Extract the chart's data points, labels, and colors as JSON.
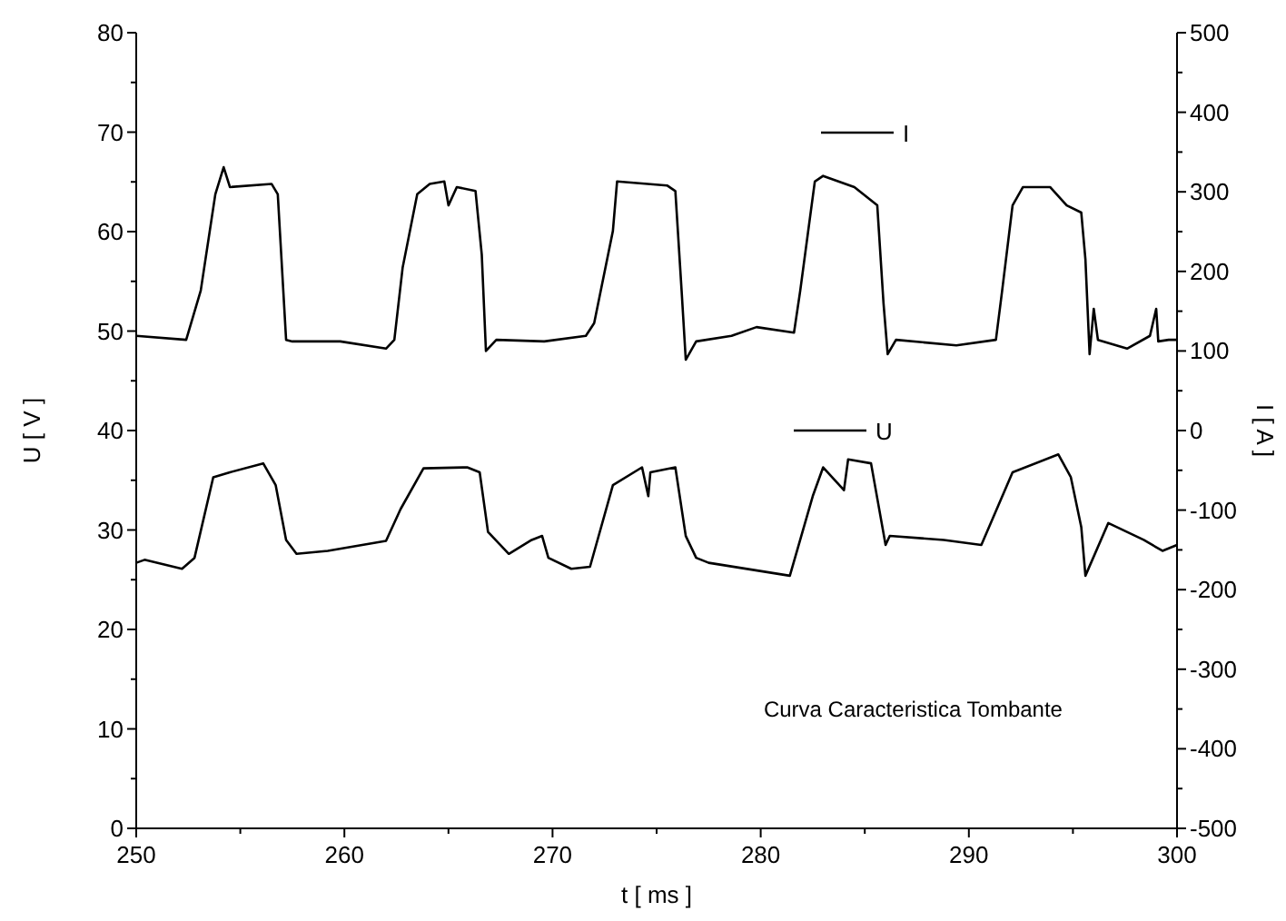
{
  "chart_data": {
    "type": "line",
    "xlabel": "t [ ms ]",
    "ylabel": "U [ V ]",
    "y2label": "I [ A ]",
    "xlim": [
      250,
      300
    ],
    "xticks": [
      250,
      {
        "value": 255,
        "label": null
      },
      260,
      {
        "value": 265,
        "label": null
      },
      270,
      {
        "value": 275,
        "label": null
      },
      280,
      {
        "value": 285,
        "label": null
      },
      290,
      {
        "value": 295,
        "label": null
      },
      300
    ],
    "ylim": [
      0,
      80
    ],
    "yticks": [
      0,
      {
        "value": 5,
        "label": null
      },
      10,
      {
        "value": 15,
        "label": null
      },
      20,
      {
        "value": 25,
        "label": null
      },
      30,
      {
        "value": 35,
        "label": null
      },
      40,
      {
        "value": 45,
        "label": null
      },
      50,
      {
        "value": 55,
        "label": null
      },
      60,
      {
        "value": 65,
        "label": null
      },
      70,
      {
        "value": 75,
        "label": null
      },
      80
    ],
    "y2lim": [
      -500,
      500
    ],
    "y2ticks": [
      -500,
      {
        "value": -450,
        "label": null
      },
      -400,
      {
        "value": -350,
        "label": null
      },
      -300,
      {
        "value": -250,
        "label": null
      },
      -200,
      {
        "value": -150,
        "label": null
      },
      -100,
      {
        "value": -50,
        "label": null
      },
      0,
      {
        "value": 50,
        "label": null
      },
      100,
      {
        "value": 150,
        "label": null
      },
      200,
      {
        "value": 250,
        "label": null
      },
      300,
      {
        "value": 350,
        "label": null
      },
      400,
      {
        "value": 450,
        "label": null
      },
      500
    ],
    "legend": "right",
    "grid": false,
    "marker": "none",
    "line_style": "solid",
    "annotations": [
      "Curva Caracteristica Tombante"
    ],
    "series": [
      {
        "name": "I",
        "color": "#000000",
        "axis": "y2",
        "x": [
          250,
          252.4,
          253.1,
          253.8,
          254.2,
          254.5,
          256.5,
          256.8,
          257.2,
          257.5,
          259.8,
          262,
          262.4,
          262.8,
          263.5,
          264.1,
          264.8,
          265,
          265.4,
          266.3,
          266.6,
          266.8,
          267.3,
          269.6,
          271.6,
          272,
          272.9,
          273.1,
          275.5,
          275.9,
          276.2,
          276.4,
          276.9,
          278.6,
          279.8,
          281.6,
          281.9,
          282.6,
          283,
          284.5,
          285.6,
          285.9,
          286.1,
          286.5,
          289.4,
          291.3,
          291.6,
          292.1,
          292.6,
          293.9,
          294.7,
          295.4,
          295.6,
          295.8,
          296,
          296.2,
          297.6,
          298.7,
          299,
          299.1,
          299.6,
          300
        ],
        "values": [
          119,
          114,
          176,
          297,
          331,
          306,
          310,
          297,
          114,
          112,
          112,
          103,
          114,
          205,
          297,
          310,
          313,
          283,
          306,
          301,
          221,
          100,
          114,
          112,
          119,
          135,
          251,
          313,
          308,
          301,
          176,
          89,
          112,
          119,
          130,
          123,
          176,
          313,
          320,
          306,
          283,
          160,
          96,
          114,
          107,
          114,
          176,
          283,
          306,
          306,
          283,
          274,
          215,
          96,
          153,
          114,
          103,
          119,
          153,
          112,
          114,
          114
        ]
      },
      {
        "name": "U",
        "color": "#000000",
        "x": [
          250,
          250.4,
          252.2,
          252.8,
          253.7,
          254.5,
          256.1,
          256.7,
          257.2,
          257.7,
          259.2,
          262,
          262.7,
          263.8,
          265.9,
          266.5,
          266.9,
          267.9,
          269,
          269.5,
          269.8,
          270.9,
          271.8,
          272.9,
          274.3,
          274.6,
          274.7,
          275.9,
          276.4,
          276.9,
          277.5,
          281.4,
          282.5,
          283,
          284,
          284.2,
          285.3,
          286,
          286.2,
          288.8,
          290.6,
          292.1,
          294.3,
          294.9,
          295.4,
          295.6,
          296.7,
          298.4,
          299.3,
          300
        ],
        "values": [
          26.7,
          27,
          26.1,
          27.2,
          35.3,
          35.8,
          36.7,
          34.5,
          29,
          27.6,
          27.9,
          28.9,
          32.1,
          36.2,
          36.3,
          35.8,
          29.8,
          27.6,
          29,
          29.4,
          27.2,
          26.1,
          26.3,
          34.5,
          36.3,
          33.4,
          35.8,
          36.3,
          29.4,
          27.2,
          26.7,
          25.4,
          33.4,
          36.3,
          34,
          37.1,
          36.7,
          28.5,
          29.4,
          29,
          28.5,
          35.8,
          37.6,
          35.3,
          30.3,
          25.4,
          30.7,
          29,
          27.9,
          28.5
        ]
      }
    ]
  }
}
